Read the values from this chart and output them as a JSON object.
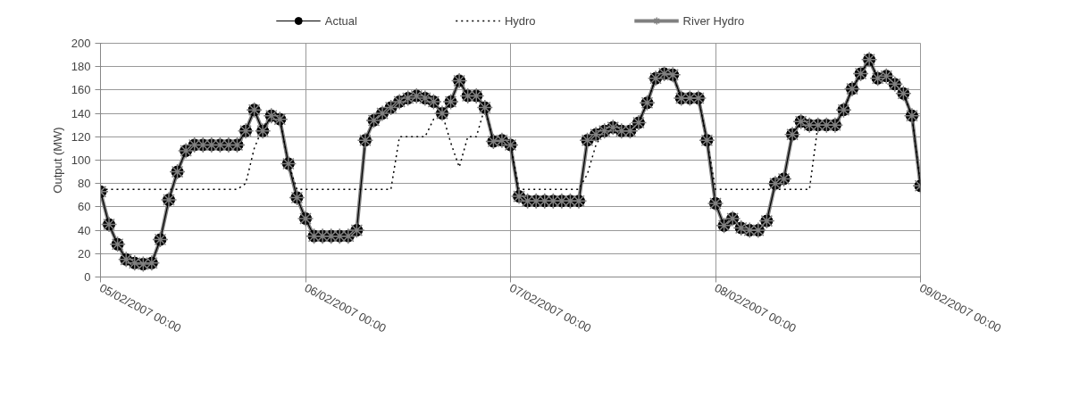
{
  "chart_data": {
    "type": "line",
    "ylabel": "Output (MW)",
    "x": [
      "2007-02-05T00:00",
      "2007-02-05T01:00",
      "2007-02-05T02:00",
      "2007-02-05T03:00",
      "2007-02-05T04:00",
      "2007-02-05T05:00",
      "2007-02-05T06:00",
      "2007-02-05T07:00",
      "2007-02-05T08:00",
      "2007-02-05T09:00",
      "2007-02-05T10:00",
      "2007-02-05T11:00",
      "2007-02-05T12:00",
      "2007-02-05T13:00",
      "2007-02-05T14:00",
      "2007-02-05T15:00",
      "2007-02-05T16:00",
      "2007-02-05T17:00",
      "2007-02-05T18:00",
      "2007-02-05T19:00",
      "2007-02-05T20:00",
      "2007-02-05T21:00",
      "2007-02-05T22:00",
      "2007-02-05T23:00",
      "2007-02-06T00:00",
      "2007-02-06T01:00",
      "2007-02-06T02:00",
      "2007-02-06T03:00",
      "2007-02-06T04:00",
      "2007-02-06T05:00",
      "2007-02-06T06:00",
      "2007-02-06T07:00",
      "2007-02-06T08:00",
      "2007-02-06T09:00",
      "2007-02-06T10:00",
      "2007-02-06T11:00",
      "2007-02-06T12:00",
      "2007-02-06T13:00",
      "2007-02-06T14:00",
      "2007-02-06T15:00",
      "2007-02-06T16:00",
      "2007-02-06T17:00",
      "2007-02-06T18:00",
      "2007-02-06T19:00",
      "2007-02-06T20:00",
      "2007-02-06T21:00",
      "2007-02-06T22:00",
      "2007-02-06T23:00",
      "2007-02-07T00:00",
      "2007-02-07T01:00",
      "2007-02-07T02:00",
      "2007-02-07T03:00",
      "2007-02-07T04:00",
      "2007-02-07T05:00",
      "2007-02-07T06:00",
      "2007-02-07T07:00",
      "2007-02-07T08:00",
      "2007-02-07T09:00",
      "2007-02-07T10:00",
      "2007-02-07T11:00",
      "2007-02-07T12:00",
      "2007-02-07T13:00",
      "2007-02-07T14:00",
      "2007-02-07T15:00",
      "2007-02-07T16:00",
      "2007-02-07T17:00",
      "2007-02-07T18:00",
      "2007-02-07T19:00",
      "2007-02-07T20:00",
      "2007-02-07T21:00",
      "2007-02-07T22:00",
      "2007-02-07T23:00",
      "2007-02-08T00:00",
      "2007-02-08T01:00",
      "2007-02-08T02:00",
      "2007-02-08T03:00",
      "2007-02-08T04:00",
      "2007-02-08T05:00",
      "2007-02-08T06:00",
      "2007-02-08T07:00",
      "2007-02-08T08:00",
      "2007-02-08T09:00",
      "2007-02-08T10:00",
      "2007-02-08T11:00",
      "2007-02-08T12:00",
      "2007-02-08T13:00",
      "2007-02-08T14:00",
      "2007-02-08T15:00",
      "2007-02-08T16:00",
      "2007-02-08T17:00",
      "2007-02-08T18:00",
      "2007-02-08T19:00",
      "2007-02-08T20:00",
      "2007-02-08T21:00",
      "2007-02-08T22:00",
      "2007-02-08T23:00",
      "2007-02-09T00:00"
    ],
    "series": [
      {
        "name": "Actual",
        "color": "#000000",
        "marker": "circle",
        "line_style": "solid",
        "values": [
          73,
          45,
          28,
          15,
          12,
          11,
          12,
          32,
          66,
          90,
          108,
          113,
          113,
          113,
          113,
          113,
          113,
          125,
          143,
          125,
          138,
          135,
          97,
          68,
          50,
          35,
          35,
          35,
          35,
          35,
          40,
          117,
          134,
          140,
          145,
          150,
          153,
          155,
          153,
          150,
          140,
          150,
          168,
          155,
          155,
          145,
          116,
          117,
          113,
          69,
          65,
          65,
          65,
          65,
          65,
          65,
          65,
          117,
          122,
          125,
          128,
          125,
          125,
          132,
          149,
          170,
          174,
          173,
          153,
          153,
          153,
          117,
          63,
          44,
          50,
          42,
          40,
          40,
          48,
          80,
          84,
          122,
          133,
          130,
          130,
          130,
          130,
          143,
          161,
          174,
          186,
          170,
          172,
          165,
          157,
          138,
          78
        ]
      },
      {
        "name": "Hydro",
        "color": "#000000",
        "marker": "none",
        "line_style": "dotted",
        "values": [
          75,
          75,
          75,
          75,
          75,
          75,
          75,
          75,
          75,
          75,
          75,
          75,
          75,
          75,
          75,
          75,
          75,
          80,
          110,
          128,
          138,
          135,
          97,
          75,
          75,
          75,
          75,
          75,
          75,
          75,
          75,
          75,
          75,
          75,
          75,
          120,
          120,
          120,
          120,
          135,
          140,
          115,
          94,
          120,
          120,
          145,
          116,
          117,
          113,
          75,
          75,
          75,
          75,
          75,
          75,
          75,
          75,
          88,
          113,
          125,
          128,
          125,
          125,
          132,
          149,
          170,
          174,
          173,
          153,
          153,
          153,
          117,
          75,
          75,
          75,
          75,
          75,
          75,
          75,
          75,
          75,
          75,
          75,
          75,
          130,
          130,
          130,
          143,
          161,
          174,
          186,
          170,
          172,
          165,
          157,
          138,
          78
        ]
      },
      {
        "name": "River Hydro",
        "color": "#808080",
        "marker": "cross",
        "line_style": "solid",
        "values": [
          73,
          45,
          28,
          15,
          12,
          11,
          12,
          32,
          66,
          90,
          108,
          113,
          113,
          113,
          113,
          113,
          113,
          125,
          143,
          125,
          138,
          135,
          97,
          68,
          50,
          35,
          35,
          35,
          35,
          35,
          40,
          117,
          134,
          140,
          145,
          150,
          153,
          155,
          153,
          150,
          140,
          150,
          168,
          155,
          155,
          145,
          116,
          117,
          113,
          69,
          65,
          65,
          65,
          65,
          65,
          65,
          65,
          117,
          122,
          125,
          128,
          125,
          125,
          132,
          149,
          170,
          174,
          173,
          153,
          153,
          153,
          117,
          63,
          44,
          50,
          42,
          40,
          40,
          48,
          80,
          84,
          122,
          133,
          130,
          130,
          130,
          130,
          143,
          161,
          174,
          186,
          170,
          172,
          165,
          157,
          138,
          78
        ]
      }
    ],
    "xlim": [
      "2007-02-05T00:00",
      "2007-02-09T00:00"
    ],
    "xticks": [
      {
        "value": "2007-02-05T00:00",
        "label": "05/02/2007  00:00"
      },
      {
        "value": "2007-02-06T00:00",
        "label": "06/02/2007  00:00"
      },
      {
        "value": "2007-02-07T00:00",
        "label": "07/02/2007  00:00"
      },
      {
        "value": "2007-02-08T00:00",
        "label": "08/02/2007  00:00"
      },
      {
        "value": "2007-02-09T00:00",
        "label": "09/02/2007  00:00"
      }
    ],
    "ylim": [
      0,
      200
    ],
    "yticks": [
      0,
      20,
      40,
      60,
      80,
      100,
      120,
      140,
      160,
      180,
      200
    ],
    "grid": true,
    "legend": "top"
  }
}
